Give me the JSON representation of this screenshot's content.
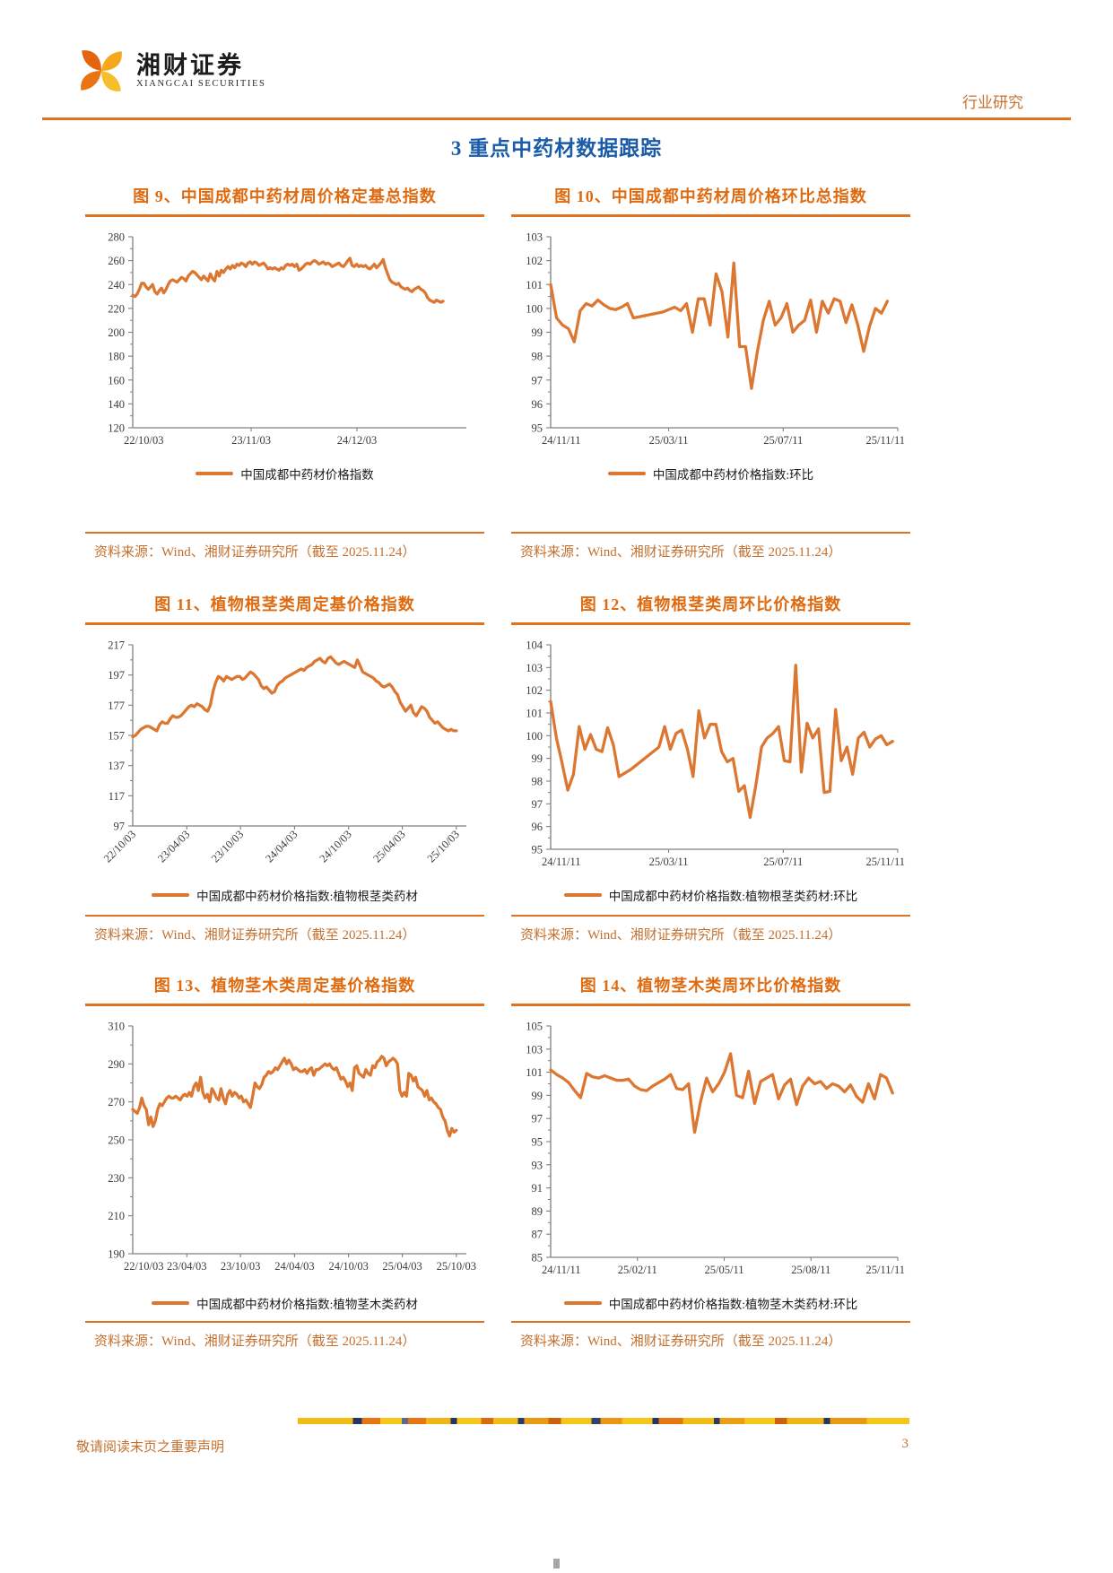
{
  "header": {
    "brand_name": "湘财证券",
    "brand_sub": "XIANGCAI SECURITIES",
    "section": "行业研究"
  },
  "page_title": "3 重点中药材数据跟踪",
  "figures": [
    {
      "title": "图 9、中国成都中药材周价格定基总指数",
      "legend": "中国成都中药材价格指数",
      "source": "资料来源：Wind、湘财证券研究所（截至 2025.11.24）"
    },
    {
      "title": "图 10、中国成都中药材周价格环比总指数",
      "legend": "中国成都中药材价格指数:环比",
      "source": "资料来源：Wind、湘财证券研究所（截至 2025.11.24）"
    },
    {
      "title": "图 11、植物根茎类周定基价格指数",
      "legend": "中国成都中药材价格指数:植物根茎类药材",
      "source": "资料来源：Wind、湘财证券研究所（截至 2025.11.24）"
    },
    {
      "title": "图 12、植物根茎类周环比价格指数",
      "legend": "中国成都中药材价格指数:植物根茎类药材:环比",
      "source": "资料来源：Wind、湘财证券研究所（截至 2025.11.24）"
    },
    {
      "title": "图 13、植物茎木类周定基价格指数",
      "legend": "中国成都中药材价格指数:植物茎木类药材",
      "source": "资料来源：Wind、湘财证券研究所（截至 2025.11.24）"
    },
    {
      "title": "图 14、植物茎木类周环比价格指数",
      "legend": "中国成都中药材价格指数:植物茎木类药材:环比",
      "source": "资料来源：Wind、湘财证券研究所（截至 2025.11.24）"
    }
  ],
  "footer": {
    "disclaimer": "敬请阅读末页之重要声明",
    "page_number": "3"
  },
  "colors": {
    "accent_orange": "#e0731f",
    "line_orange": "#dc7731",
    "title_blue": "#1b5ca8",
    "source_orange": "#c4702e"
  },
  "chart_data": [
    {
      "type": "line",
      "title": "中国成都中药材周价格定基总指数",
      "series_name": "中国成都中药材价格指数",
      "ylim": [
        120,
        280
      ],
      "ystep": 20,
      "grid": false,
      "legend_position": "bottom",
      "xticks": [
        {
          "f": 0,
          "label": "22/10/03",
          "a": "s"
        },
        {
          "f": 0.355,
          "label": "23/11/03",
          "a": "m"
        },
        {
          "f": 0.672,
          "label": "24/12/03",
          "a": "m"
        }
      ],
      "endf": 0.93,
      "values": [
        231,
        230,
        232,
        236,
        241,
        241,
        238,
        236,
        238,
        240,
        234,
        232,
        235,
        237,
        233,
        236,
        240,
        243,
        244,
        243,
        242,
        244,
        246,
        245,
        243,
        247,
        249,
        251,
        250,
        248,
        246,
        244,
        247,
        245,
        243,
        249,
        245,
        243,
        251,
        247,
        252,
        250,
        253,
        255,
        253,
        256,
        254,
        257,
        256,
        258,
        257,
        255,
        258,
        259,
        257,
        259,
        258,
        256,
        257,
        258,
        256,
        253,
        254,
        253,
        254,
        253,
        252,
        254,
        253,
        256,
        257,
        256,
        257,
        255,
        257,
        252,
        253,
        255,
        257,
        258,
        257,
        259,
        260,
        259,
        257,
        258,
        259,
        257,
        258,
        257,
        255,
        256,
        257,
        258,
        256,
        255,
        257,
        260,
        262,
        256,
        255,
        257,
        255,
        256,
        255,
        256,
        254,
        253,
        255,
        257,
        254,
        256,
        258,
        261,
        254,
        249,
        244,
        242,
        241,
        240,
        241,
        238,
        237,
        236,
        237,
        235,
        234,
        236,
        237,
        238,
        236,
        235,
        233,
        229,
        227,
        226,
        225,
        227,
        226,
        225,
        226
      ]
    },
    {
      "type": "line",
      "title": "中国成都中药材周价格环比总指数",
      "series_name": "中国成都中药材价格指数:环比",
      "ylim": [
        95,
        103
      ],
      "ystep": 1,
      "grid": false,
      "legend_position": "bottom",
      "xticks": [
        {
          "f": 0,
          "label": "24/11/11",
          "a": "s"
        },
        {
          "f": 0.34,
          "label": "25/03/11",
          "a": "m"
        },
        {
          "f": 0.67,
          "label": "25/07/11",
          "a": "m"
        },
        {
          "f": 1,
          "label": "25/11/11",
          "a": "e"
        }
      ],
      "endf": 0.97,
      "values": [
        101.0,
        99.6,
        99.3,
        99.15,
        98.6,
        99.9,
        100.2,
        100.1,
        100.35,
        100.15,
        100.0,
        99.95,
        100.05,
        100.2,
        99.6,
        99.65,
        99.7,
        99.75,
        99.8,
        99.85,
        99.95,
        100.05,
        99.9,
        100.2,
        99.0,
        100.4,
        100.4,
        99.3,
        101.45,
        100.7,
        98.8,
        101.9,
        98.4,
        98.4,
        96.65,
        98.2,
        99.5,
        100.3,
        99.3,
        99.6,
        100.2,
        99.0,
        99.3,
        99.5,
        100.35,
        99.0,
        100.3,
        99.8,
        100.4,
        100.3,
        99.4,
        100.15,
        99.3,
        98.2,
        99.25,
        100.0,
        99.8,
        100.3
      ]
    },
    {
      "type": "line",
      "title": "植物根茎类周定基价格指数",
      "series_name": "中国成都中药材价格指数:植物根茎类药材",
      "ylim": [
        97,
        217
      ],
      "ystep": 20,
      "grid": false,
      "legend_position": "bottom",
      "rotate_xlabels": true,
      "xticks": [
        {
          "f": 0,
          "label": "22/10/03",
          "a": "r"
        },
        {
          "f": 0.162,
          "label": "23/04/03",
          "a": "r"
        },
        {
          "f": 0.323,
          "label": "23/10/03",
          "a": "r"
        },
        {
          "f": 0.485,
          "label": "24/04/03",
          "a": "r"
        },
        {
          "f": 0.647,
          "label": "24/10/03",
          "a": "r"
        },
        {
          "f": 0.808,
          "label": "25/04/03",
          "a": "r"
        },
        {
          "f": 0.97,
          "label": "25/10/03",
          "a": "r"
        }
      ],
      "endf": 0.97,
      "values": [
        156,
        157,
        159,
        161,
        162,
        163,
        163,
        162,
        161,
        160,
        164,
        166,
        165,
        165,
        168,
        170,
        169,
        169,
        170,
        172,
        174,
        176,
        177,
        176,
        178,
        177,
        176,
        174,
        173,
        177,
        186,
        192,
        196,
        195,
        193,
        196,
        195,
        194,
        195,
        196,
        196,
        194,
        195,
        197,
        199,
        198,
        196,
        194,
        190,
        188,
        189,
        187,
        185,
        186,
        190,
        192,
        193,
        195,
        196,
        197,
        198,
        199,
        200,
        201,
        200,
        202,
        203,
        204,
        206,
        207,
        208,
        206,
        205,
        208,
        209,
        207,
        205,
        204,
        205,
        206,
        205,
        204,
        203,
        202,
        207,
        203,
        199,
        198,
        197,
        196,
        195,
        193,
        192,
        190,
        189,
        190,
        191,
        189,
        186,
        184,
        179,
        176,
        173,
        175,
        177,
        172,
        170,
        173,
        176,
        175,
        173,
        169,
        167,
        165,
        166,
        164,
        162,
        161,
        160,
        161,
        160,
        160
      ]
    },
    {
      "type": "line",
      "title": "植物根茎类周环比价格指数",
      "series_name": "中国成都中药材价格指数:植物根茎类药材:环比",
      "ylim": [
        95,
        104
      ],
      "ystep": 1,
      "grid": false,
      "legend_position": "bottom",
      "xticks": [
        {
          "f": 0,
          "label": "24/11/11",
          "a": "s"
        },
        {
          "f": 0.34,
          "label": "25/03/11",
          "a": "m"
        },
        {
          "f": 0.67,
          "label": "25/07/11",
          "a": "m"
        },
        {
          "f": 1,
          "label": "25/11/11",
          "a": "e"
        }
      ],
      "endf": 0.985,
      "values": [
        101.5,
        99.9,
        98.8,
        97.6,
        98.3,
        100.4,
        99.4,
        100.05,
        99.4,
        99.3,
        100.35,
        99.6,
        98.2,
        98.35,
        98.5,
        98.7,
        98.9,
        99.1,
        99.3,
        99.5,
        100.4,
        99.4,
        100.1,
        100.25,
        99.4,
        98.2,
        101.1,
        99.9,
        100.5,
        100.5,
        99.3,
        98.85,
        99.0,
        97.55,
        97.8,
        96.4,
        97.8,
        99.5,
        99.9,
        100.1,
        100.4,
        98.9,
        98.85,
        103.1,
        98.4,
        100.55,
        99.9,
        100.3,
        97.5,
        97.55,
        101.15,
        98.9,
        99.5,
        98.3,
        99.9,
        100.15,
        99.5,
        99.85,
        100.0,
        99.6,
        99.75
      ]
    },
    {
      "type": "line",
      "title": "植物茎木类周定基价格指数",
      "series_name": "中国成都中药材价格指数:植物茎木类药材",
      "ylim": [
        190,
        310
      ],
      "ystep": 20,
      "grid": false,
      "legend_position": "bottom",
      "xticks": [
        {
          "f": 0,
          "label": "22/10/03",
          "a": "s"
        },
        {
          "f": 0.162,
          "label": "23/04/03",
          "a": "m"
        },
        {
          "f": 0.323,
          "label": "23/10/03",
          "a": "m"
        },
        {
          "f": 0.485,
          "label": "24/04/03",
          "a": "m"
        },
        {
          "f": 0.647,
          "label": "24/10/03",
          "a": "m"
        },
        {
          "f": 0.808,
          "label": "25/04/03",
          "a": "m"
        },
        {
          "f": 0.97,
          "label": "25/10/03",
          "a": "m"
        }
      ],
      "endf": 0.97,
      "values": [
        266,
        265,
        264,
        267,
        272,
        268,
        266,
        258,
        262,
        257,
        260,
        266,
        269,
        268,
        270,
        272,
        273,
        272,
        272,
        273,
        272,
        271,
        273,
        274,
        273,
        275,
        273,
        278,
        280,
        276,
        283,
        275,
        272,
        274,
        270,
        277,
        275,
        272,
        271,
        277,
        272,
        269,
        274,
        276,
        273,
        275,
        274,
        272,
        273,
        270,
        271,
        269,
        267,
        273,
        280,
        278,
        277,
        279,
        283,
        284,
        286,
        285,
        286,
        288,
        287,
        289,
        291,
        293,
        290,
        292,
        290,
        287,
        288,
        287,
        286,
        286,
        287,
        285,
        287,
        288,
        284,
        287,
        287,
        288,
        289,
        290,
        289,
        290,
        288,
        287,
        288,
        285,
        282,
        283,
        281,
        278,
        280,
        276,
        288,
        289,
        285,
        284,
        283,
        287,
        285,
        284,
        289,
        288,
        291,
        292,
        294,
        293,
        289,
        291,
        292,
        293,
        292,
        290,
        276,
        273,
        275,
        273,
        285,
        284,
        281,
        283,
        278,
        277,
        276,
        273,
        276,
        271,
        272,
        270,
        269,
        267,
        266,
        262,
        260,
        255,
        252,
        256,
        254,
        255
      ]
    },
    {
      "type": "line",
      "title": "植物茎木类周环比价格指数",
      "series_name": "中国成都中药材价格指数:植物茎木类药材:环比",
      "ylim": [
        85,
        105
      ],
      "ystep": 2,
      "grid": false,
      "legend_position": "bottom",
      "xticks": [
        {
          "f": 0,
          "label": "24/11/11",
          "a": "s"
        },
        {
          "f": 0.25,
          "label": "25/02/11",
          "a": "m"
        },
        {
          "f": 0.5,
          "label": "25/05/11",
          "a": "m"
        },
        {
          "f": 0.75,
          "label": "25/08/11",
          "a": "m"
        },
        {
          "f": 1,
          "label": "25/11/11",
          "a": "e"
        }
      ],
      "endf": 0.985,
      "values": [
        101.2,
        100.8,
        100.5,
        100.1,
        99.4,
        98.8,
        100.9,
        100.6,
        100.5,
        100.7,
        100.5,
        100.3,
        100.3,
        100.4,
        99.8,
        99.5,
        99.4,
        99.8,
        100.1,
        100.4,
        100.8,
        99.6,
        99.5,
        100.0,
        95.8,
        98.5,
        100.5,
        99.3,
        100.0,
        101.0,
        102.6,
        99.0,
        98.8,
        101.1,
        98.3,
        100.2,
        100.5,
        100.8,
        98.7,
        99.9,
        100.4,
        98.2,
        99.8,
        100.5,
        100.0,
        100.2,
        99.6,
        100.0,
        99.8,
        99.3,
        99.9,
        98.9,
        98.4,
        100.0,
        98.7,
        100.8,
        100.5,
        99.2
      ]
    }
  ]
}
